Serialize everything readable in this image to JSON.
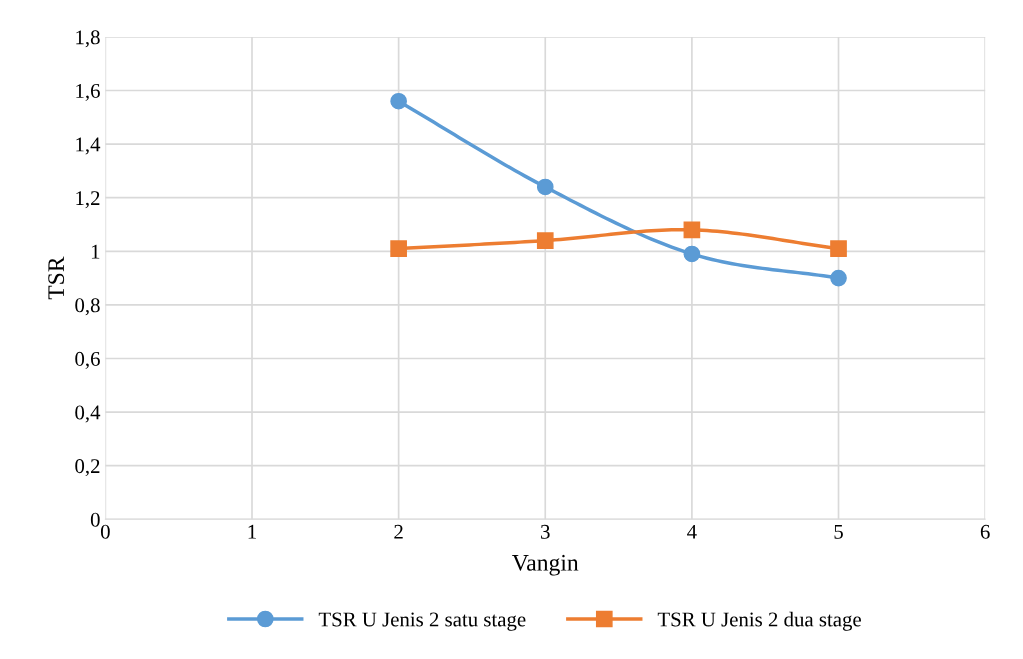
{
  "chart_data": {
    "type": "line",
    "xlabel": "Vangin",
    "ylabel": "TSR",
    "x": [
      2,
      3,
      4,
      5
    ],
    "series": [
      {
        "name": "TSR U Jenis 2 satu stage",
        "color": "#5b9bd5",
        "marker": "circle",
        "values": [
          1.56,
          1.24,
          0.99,
          0.9
        ]
      },
      {
        "name": "TSR U Jenis 2 dua stage",
        "color": "#ed7d31",
        "marker": "square",
        "values": [
          1.01,
          1.04,
          1.08,
          1.01
        ]
      }
    ],
    "xlim": [
      0,
      6
    ],
    "xticks": [
      0,
      1,
      2,
      3,
      4,
      5,
      6
    ],
    "ylim": [
      0,
      1.8
    ],
    "yticks": [
      0,
      {
        "value": 0.2,
        "label": "0,2"
      },
      {
        "value": 0.4,
        "label": "0,4"
      },
      {
        "value": 0.6,
        "label": "0,6"
      },
      {
        "value": 0.8,
        "label": "0,8"
      },
      1,
      {
        "value": 1.2,
        "label": "1,2"
      },
      {
        "value": 1.4,
        "label": "1,4"
      },
      {
        "value": 1.6,
        "label": "1,6"
      },
      {
        "value": 1.8,
        "label": "1,8"
      }
    ],
    "grid": true,
    "legend": "bottom",
    "line_style": "solid"
  }
}
